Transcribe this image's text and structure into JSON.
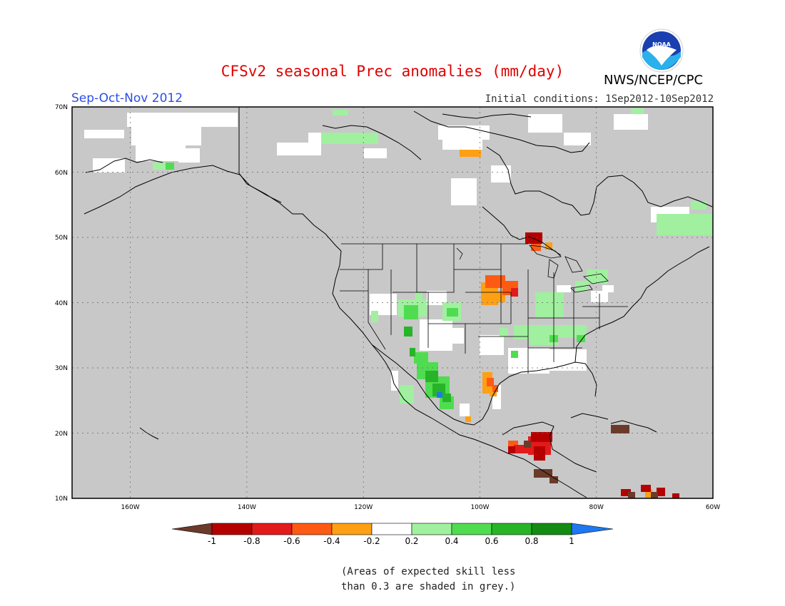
{
  "header": {
    "title": "CFSv2 seasonal Prec anomalies (mm/day)",
    "season": "Sep-Oct-Nov 2012",
    "initial_conditions": "Initial conditions: 1Sep2012-10Sep2012",
    "organization": "NWS/NCEP/CPC",
    "logo_text": "NOAA"
  },
  "map": {
    "lat_labels": [
      "70N",
      "60N",
      "50N",
      "40N",
      "30N",
      "20N",
      "10N"
    ],
    "lon_labels": [
      "160W",
      "140W",
      "120W",
      "100W",
      "80W",
      "60W"
    ],
    "lat_range": [
      10,
      70
    ],
    "lon_range": [
      -170,
      -60
    ],
    "grid": "dotted",
    "background_color": "#c8c8c8"
  },
  "colorbar": {
    "labels": [
      "-1",
      "-0.8",
      "-0.6",
      "-0.4",
      "-0.2",
      "0.2",
      "0.4",
      "0.6",
      "0.8",
      "1"
    ],
    "colors": [
      "#6b3a2a",
      "#b50000",
      "#e31a1c",
      "#ff5a14",
      "#ff9f14",
      "#ffffff",
      "#a0f0a0",
      "#50dc50",
      "#28b428",
      "#148c14",
      "#1e78f0"
    ]
  },
  "footnote": {
    "line1": "(Areas of expected skill less",
    "line2": "than 0.3 are shaded in grey.)"
  }
}
